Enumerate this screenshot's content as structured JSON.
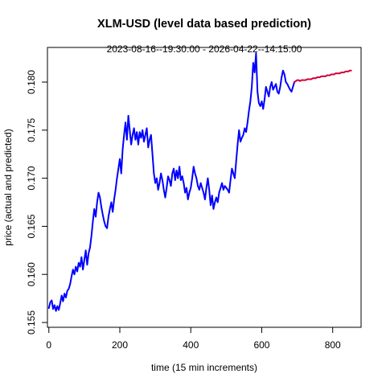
{
  "chart_data": {
    "type": "line",
    "title": "XLM-USD (level data based prediction)",
    "subtitle": "2023-08-16--19:30:00  -  2026-04-22--14:15:00",
    "xlabel": "time (15 min increments)",
    "ylabel": "price (actual and predicted)",
    "xlim": [
      -4,
      880
    ],
    "ylim": [
      0.1545,
      0.1836
    ],
    "x_ticks": [
      0,
      200,
      400,
      600,
      800
    ],
    "x_tick_labels": [
      "0",
      "200",
      "400",
      "600",
      "800"
    ],
    "y_ticks": [
      0.155,
      0.16,
      0.165,
      0.17,
      0.175,
      0.18
    ],
    "y_tick_labels": [
      "0.155",
      "0.160",
      "0.165",
      "0.170",
      "0.175",
      "0.180"
    ],
    "grid": false,
    "series": [
      {
        "role": "actual",
        "color": "#0000ff",
        "points": [
          [
            0,
            0.1565
          ],
          [
            4,
            0.1571
          ],
          [
            8,
            0.1573
          ],
          [
            12,
            0.1564
          ],
          [
            16,
            0.1568
          ],
          [
            20,
            0.1562
          ],
          [
            24,
            0.1567
          ],
          [
            28,
            0.1563
          ],
          [
            32,
            0.157
          ],
          [
            36,
            0.1578
          ],
          [
            40,
            0.1572
          ],
          [
            44,
            0.158
          ],
          [
            48,
            0.1576
          ],
          [
            52,
            0.1583
          ],
          [
            56,
            0.1585
          ],
          [
            60,
            0.159
          ],
          [
            64,
            0.1598
          ],
          [
            68,
            0.1605
          ],
          [
            72,
            0.16
          ],
          [
            76,
            0.1608
          ],
          [
            80,
            0.1603
          ],
          [
            84,
            0.1612
          ],
          [
            88,
            0.1608
          ],
          [
            92,
            0.1618
          ],
          [
            96,
            0.1605
          ],
          [
            100,
            0.1615
          ],
          [
            104,
            0.1625
          ],
          [
            108,
            0.161
          ],
          [
            112,
            0.1622
          ],
          [
            116,
            0.1628
          ],
          [
            120,
            0.164
          ],
          [
            124,
            0.1655
          ],
          [
            128,
            0.1668
          ],
          [
            132,
            0.166
          ],
          [
            136,
            0.1675
          ],
          [
            140,
            0.1685
          ],
          [
            144,
            0.168
          ],
          [
            148,
            0.167
          ],
          [
            152,
            0.1662
          ],
          [
            156,
            0.1655
          ],
          [
            160,
            0.165
          ],
          [
            164,
            0.1648
          ],
          [
            168,
            0.166
          ],
          [
            172,
            0.1668
          ],
          [
            176,
            0.1675
          ],
          [
            180,
            0.1665
          ],
          [
            184,
            0.1678
          ],
          [
            188,
            0.1688
          ],
          [
            192,
            0.17
          ],
          [
            196,
            0.171
          ],
          [
            200,
            0.172
          ],
          [
            204,
            0.1705
          ],
          [
            208,
            0.173
          ],
          [
            212,
            0.1745
          ],
          [
            216,
            0.1758
          ],
          [
            220,
            0.174
          ],
          [
            224,
            0.1765
          ],
          [
            228,
            0.175
          ],
          [
            232,
            0.1735
          ],
          [
            236,
            0.1745
          ],
          [
            240,
            0.1752
          ],
          [
            244,
            0.174
          ],
          [
            248,
            0.1748
          ],
          [
            252,
            0.1735
          ],
          [
            256,
            0.1748
          ],
          [
            260,
            0.1742
          ],
          [
            264,
            0.175
          ],
          [
            268,
            0.1738
          ],
          [
            272,
            0.1745
          ],
          [
            276,
            0.1752
          ],
          [
            280,
            0.1732
          ],
          [
            284,
            0.174
          ],
          [
            288,
            0.1745
          ],
          [
            292,
            0.1725
          ],
          [
            296,
            0.1705
          ],
          [
            300,
            0.1695
          ],
          [
            304,
            0.17
          ],
          [
            308,
            0.1688
          ],
          [
            312,
            0.1695
          ],
          [
            316,
            0.1705
          ],
          [
            320,
            0.1698
          ],
          [
            324,
            0.1688
          ],
          [
            328,
            0.168
          ],
          [
            332,
            0.169
          ],
          [
            336,
            0.1702
          ],
          [
            340,
            0.1698
          ],
          [
            344,
            0.1692
          ],
          [
            348,
            0.1705
          ],
          [
            352,
            0.171
          ],
          [
            356,
            0.1698
          ],
          [
            360,
            0.1708
          ],
          [
            364,
            0.17
          ],
          [
            368,
            0.1712
          ],
          [
            372,
            0.1698
          ],
          [
            376,
            0.1702
          ],
          [
            380,
            0.1695
          ],
          [
            384,
            0.1685
          ],
          [
            388,
            0.169
          ],
          [
            392,
            0.1678
          ],
          [
            396,
            0.1685
          ],
          [
            400,
            0.169
          ],
          [
            404,
            0.17
          ],
          [
            408,
            0.1712
          ],
          [
            412,
            0.1705
          ],
          [
            416,
            0.17
          ],
          [
            420,
            0.1692
          ],
          [
            424,
            0.1688
          ],
          [
            428,
            0.1695
          ],
          [
            432,
            0.169
          ],
          [
            436,
            0.1685
          ],
          [
            440,
            0.1678
          ],
          [
            444,
            0.169
          ],
          [
            448,
            0.17
          ],
          [
            452,
            0.1688
          ],
          [
            456,
            0.1672
          ],
          [
            460,
            0.1682
          ],
          [
            464,
            0.1668
          ],
          [
            468,
            0.1675
          ],
          [
            472,
            0.168
          ],
          [
            476,
            0.1675
          ],
          [
            480,
            0.1685
          ],
          [
            484,
            0.169
          ],
          [
            488,
            0.1695
          ],
          [
            492,
            0.1688
          ],
          [
            496,
            0.1692
          ],
          [
            500,
            0.169
          ],
          [
            504,
            0.1688
          ],
          [
            508,
            0.1685
          ],
          [
            512,
            0.1698
          ],
          [
            516,
            0.171
          ],
          [
            520,
            0.1705
          ],
          [
            524,
            0.17
          ],
          [
            528,
            0.1718
          ],
          [
            532,
            0.1735
          ],
          [
            536,
            0.175
          ],
          [
            540,
            0.1738
          ],
          [
            544,
            0.1742
          ],
          [
            548,
            0.1745
          ],
          [
            552,
            0.1752
          ],
          [
            556,
            0.1748
          ],
          [
            560,
            0.1758
          ],
          [
            564,
            0.177
          ],
          [
            568,
            0.178
          ],
          [
            572,
            0.1795
          ],
          [
            576,
            0.182
          ],
          [
            580,
            0.181
          ],
          [
            584,
            0.183
          ],
          [
            588,
            0.179
          ],
          [
            592,
            0.1778
          ],
          [
            596,
            0.1775
          ],
          [
            600,
            0.178
          ],
          [
            604,
            0.1772
          ],
          [
            608,
            0.1782
          ],
          [
            612,
            0.1795
          ],
          [
            616,
            0.179
          ],
          [
            620,
            0.1785
          ],
          [
            624,
            0.1795
          ],
          [
            628,
            0.18
          ],
          [
            632,
            0.1792
          ],
          [
            636,
            0.1795
          ],
          [
            640,
            0.1798
          ],
          [
            644,
            0.179
          ],
          [
            648,
            0.1788
          ],
          [
            652,
            0.1795
          ],
          [
            656,
            0.1805
          ],
          [
            660,
            0.1812
          ],
          [
            664,
            0.1808
          ],
          [
            668,
            0.18
          ],
          [
            672,
            0.1798
          ],
          [
            676,
            0.1795
          ],
          [
            680,
            0.1792
          ],
          [
            684,
            0.179
          ],
          [
            688,
            0.1795
          ],
          [
            692,
            0.18
          ]
        ]
      },
      {
        "role": "predicted",
        "color": "#cd0033",
        "points": [
          [
            692,
            0.18
          ],
          [
            696,
            0.1801
          ],
          [
            700,
            0.1802
          ],
          [
            704,
            0.1802
          ],
          [
            708,
            0.1801
          ],
          [
            712,
            0.1802
          ],
          [
            716,
            0.1802
          ],
          [
            720,
            0.1802
          ],
          [
            724,
            0.1802
          ],
          [
            728,
            0.1803
          ],
          [
            732,
            0.1803
          ],
          [
            736,
            0.1803
          ],
          [
            740,
            0.1803
          ],
          [
            744,
            0.1804
          ],
          [
            748,
            0.1804
          ],
          [
            752,
            0.1804
          ],
          [
            756,
            0.1805
          ],
          [
            760,
            0.1805
          ],
          [
            764,
            0.1805
          ],
          [
            768,
            0.1806
          ],
          [
            772,
            0.1806
          ],
          [
            776,
            0.1806
          ],
          [
            780,
            0.1806
          ],
          [
            784,
            0.1807
          ],
          [
            788,
            0.1807
          ],
          [
            792,
            0.1807
          ],
          [
            796,
            0.1808
          ],
          [
            800,
            0.1808
          ],
          [
            804,
            0.1808
          ],
          [
            808,
            0.1809
          ],
          [
            812,
            0.1809
          ],
          [
            816,
            0.1809
          ],
          [
            820,
            0.1809
          ],
          [
            824,
            0.181
          ],
          [
            828,
            0.181
          ],
          [
            832,
            0.181
          ],
          [
            836,
            0.1811
          ],
          [
            840,
            0.1811
          ],
          [
            844,
            0.1811
          ],
          [
            848,
            0.1812
          ],
          [
            852,
            0.1812
          ]
        ]
      }
    ]
  }
}
